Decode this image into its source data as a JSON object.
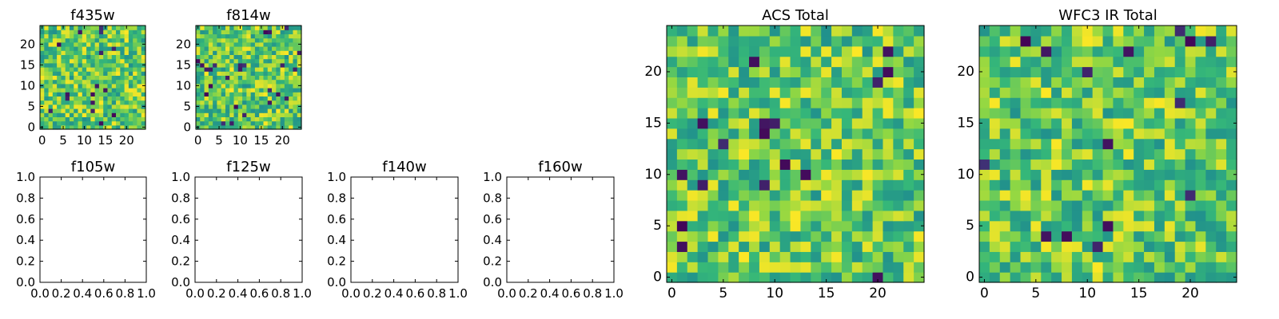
{
  "palette": {
    "low": "#440154",
    "mid_low": "#31688e",
    "mid": "#21918c",
    "mid_high": "#35b779",
    "high_mid": "#90d743",
    "high": "#fde725"
  },
  "chart_data": [
    {
      "type": "heatmap",
      "title": "f435w",
      "xlabel": "",
      "ylabel": "",
      "grid_size": 25,
      "xlim": [
        -0.5,
        24.5
      ],
      "ylim": [
        -0.5,
        24.5
      ],
      "xticks": [
        0,
        5,
        10,
        15,
        20
      ],
      "yticks": [
        0,
        5,
        10,
        15,
        20
      ],
      "colormap": "viridis",
      "seed": 11,
      "values": "25x25 random-like intensity map"
    },
    {
      "type": "heatmap",
      "title": "f814w",
      "xlabel": "",
      "ylabel": "",
      "grid_size": 25,
      "xlim": [
        -0.5,
        24.5
      ],
      "ylim": [
        -0.5,
        24.5
      ],
      "xticks": [
        0,
        5,
        10,
        15,
        20
      ],
      "yticks": [
        0,
        5,
        10,
        15,
        20
      ],
      "colormap": "viridis",
      "seed": 23,
      "values": "25x25 random-like intensity map"
    },
    {
      "type": "empty",
      "title": "f105w",
      "xlim": [
        0,
        1
      ],
      "ylim": [
        0,
        1
      ],
      "xticks": [
        "0.0",
        "0.2",
        "0.4",
        "0.6",
        "0.8",
        "1.0"
      ],
      "yticks": [
        "0.0",
        "0.2",
        "0.4",
        "0.6",
        "0.8",
        "1.0"
      ]
    },
    {
      "type": "empty",
      "title": "f125w",
      "xlim": [
        0,
        1
      ],
      "ylim": [
        0,
        1
      ],
      "xticks": [
        "0.0",
        "0.2",
        "0.4",
        "0.6",
        "0.8",
        "1.0"
      ],
      "yticks": [
        "0.0",
        "0.2",
        "0.4",
        "0.6",
        "0.8",
        "1.0"
      ]
    },
    {
      "type": "empty",
      "title": "f140w",
      "xlim": [
        0,
        1
      ],
      "ylim": [
        0,
        1
      ],
      "xticks": [
        "0.0",
        "0.2",
        "0.4",
        "0.6",
        "0.8",
        "1.0"
      ],
      "yticks": [
        "0.0",
        "0.2",
        "0.4",
        "0.6",
        "0.8",
        "1.0"
      ]
    },
    {
      "type": "empty",
      "title": "f160w",
      "xlim": [
        0,
        1
      ],
      "ylim": [
        0,
        1
      ],
      "xticks": [
        "0.0",
        "0.2",
        "0.4",
        "0.6",
        "0.8",
        "1.0"
      ],
      "yticks": [
        "0.0",
        "0.2",
        "0.4",
        "0.6",
        "0.8",
        "1.0"
      ]
    },
    {
      "type": "heatmap",
      "title": "ACS Total",
      "xlabel": "",
      "ylabel": "",
      "grid_size": 25,
      "xlim": [
        -0.5,
        24.5
      ],
      "ylim": [
        -0.5,
        24.5
      ],
      "xticks": [
        0,
        5,
        10,
        15,
        20
      ],
      "yticks": [
        0,
        5,
        10,
        15,
        20
      ],
      "colormap": "viridis",
      "seed": 37,
      "values": "25x25 random-like intensity map"
    },
    {
      "type": "heatmap",
      "title": "WFC3 IR Total",
      "xlabel": "",
      "ylabel": "",
      "grid_size": 25,
      "xlim": [
        -0.5,
        24.5
      ],
      "ylim": [
        -0.5,
        24.5
      ],
      "xticks": [
        0,
        5,
        10,
        15,
        20
      ],
      "yticks": [
        0,
        5,
        10,
        15,
        20
      ],
      "colormap": "viridis",
      "seed": 53,
      "values": "25x25 random-like intensity map"
    }
  ]
}
